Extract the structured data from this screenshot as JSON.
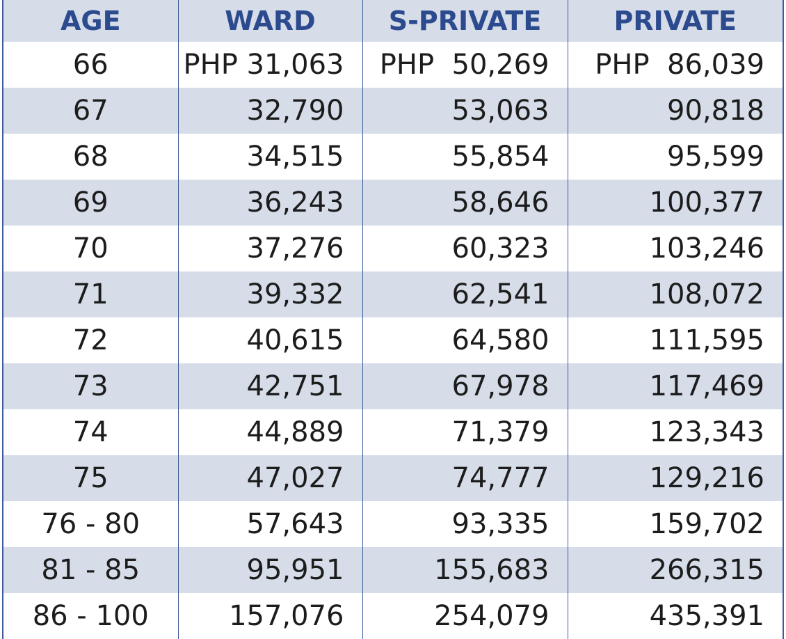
{
  "table": {
    "header": [
      "AGE",
      "WARD",
      "S-PRIVATE",
      "PRIVATE"
    ],
    "rows": [
      [
        "66",
        "PHP 31,063",
        "PHP  50,269",
        "PHP  86,039"
      ],
      [
        "67",
        "32,790",
        "53,063",
        "90,818"
      ],
      [
        "68",
        "34,515",
        "55,854",
        "95,599"
      ],
      [
        "69",
        "36,243",
        "58,646",
        "100,377"
      ],
      [
        "70",
        "37,276",
        "60,323",
        "103,246"
      ],
      [
        "71",
        "39,332",
        "62,541",
        "108,072"
      ],
      [
        "72",
        "40,615",
        "64,580",
        "111,595"
      ],
      [
        "73",
        "42,751",
        "67,978",
        "117,469"
      ],
      [
        "74",
        "44,889",
        "71,379",
        "123,343"
      ],
      [
        "75",
        "47,027",
        "74,777",
        "129,216"
      ],
      [
        "76 - 80",
        "57,643",
        "93,335",
        "159,702"
      ],
      [
        "81 - 85",
        "95,951",
        "155,683",
        "266,315"
      ],
      [
        "86 - 100",
        "157,076",
        "254,079",
        "435,391"
      ]
    ]
  }
}
